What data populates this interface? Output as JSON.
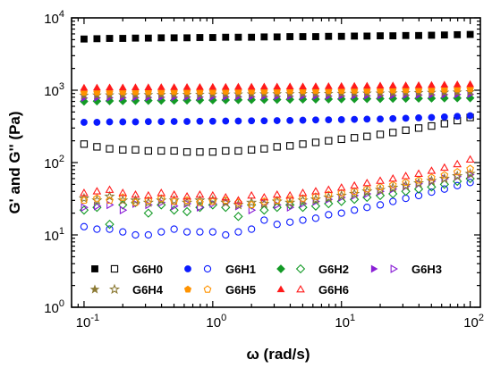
{
  "chart_data": {
    "type": "scatter",
    "title": "",
    "xlabel": "ω (rad/s)",
    "ylabel": "G' and G'' (Pa)",
    "xscale": "log",
    "yscale": "log",
    "xlim": [
      0.08,
      120
    ],
    "ylim": [
      1,
      10000
    ],
    "x_ticks": [
      {
        "value": 0.1,
        "base": "10",
        "exp": "-1"
      },
      {
        "value": 1,
        "base": "10",
        "exp": "0"
      },
      {
        "value": 10,
        "base": "10",
        "exp": "1"
      },
      {
        "value": 100,
        "base": "10",
        "exp": "2"
      }
    ],
    "y_ticks": [
      {
        "value": 1,
        "base": "10",
        "exp": "0"
      },
      {
        "value": 10,
        "base": "10",
        "exp": "1"
      },
      {
        "value": 100,
        "base": "10",
        "exp": "2"
      },
      {
        "value": 1000,
        "base": "10",
        "exp": "3"
      },
      {
        "value": 10000,
        "base": "10",
        "exp": "4"
      }
    ],
    "grid": false,
    "legend_position": "bottom-inside",
    "x": [
      0.1,
      0.126,
      0.158,
      0.2,
      0.251,
      0.316,
      0.398,
      0.501,
      0.631,
      0.794,
      1.0,
      1.26,
      1.58,
      2.0,
      2.51,
      3.16,
      3.98,
      5.01,
      6.31,
      7.94,
      10.0,
      12.6,
      15.8,
      20.0,
      25.1,
      31.6,
      39.8,
      50.1,
      63.1,
      79.4,
      100.0
    ],
    "series": [
      {
        "name": "G6H0",
        "marker": "square",
        "filled": true,
        "color": "#000000",
        "values": [
          5100,
          5150,
          5200,
          5200,
          5250,
          5250,
          5300,
          5300,
          5300,
          5350,
          5350,
          5400,
          5400,
          5400,
          5450,
          5450,
          5500,
          5500,
          5500,
          5550,
          5550,
          5600,
          5600,
          5650,
          5650,
          5700,
          5700,
          5750,
          5800,
          5850,
          5900
        ]
      },
      {
        "name": "G6H0",
        "marker": "square",
        "filled": false,
        "color": "#000000",
        "values": [
          180,
          165,
          155,
          150,
          150,
          145,
          145,
          145,
          140,
          140,
          140,
          145,
          145,
          150,
          155,
          165,
          170,
          180,
          190,
          200,
          210,
          220,
          230,
          245,
          260,
          280,
          300,
          320,
          345,
          380,
          420
        ]
      },
      {
        "name": "G6H1",
        "marker": "circle",
        "filled": true,
        "color": "#0a1aff",
        "values": [
          360,
          360,
          365,
          365,
          365,
          368,
          368,
          370,
          370,
          372,
          372,
          375,
          375,
          378,
          378,
          380,
          382,
          385,
          388,
          390,
          392,
          395,
          398,
          400,
          405,
          410,
          415,
          420,
          428,
          435,
          445
        ]
      },
      {
        "name": "G6H1",
        "marker": "circle",
        "filled": false,
        "color": "#0a1aff",
        "values": [
          13,
          12,
          12,
          11,
          10,
          10,
          11,
          12,
          11,
          11,
          11,
          10,
          11,
          12,
          16,
          14,
          15,
          16,
          17,
          19,
          20,
          22,
          24,
          26,
          29,
          32,
          35,
          39,
          43,
          48,
          53
        ]
      },
      {
        "name": "G6H2",
        "marker": "diamond",
        "filled": true,
        "color": "#139a26",
        "values": [
          700,
          705,
          710,
          712,
          715,
          718,
          720,
          722,
          725,
          728,
          730,
          732,
          735,
          738,
          740,
          742,
          745,
          748,
          750,
          752,
          755,
          758,
          760,
          762,
          765,
          768,
          770,
          772,
          775,
          778,
          780
        ]
      },
      {
        "name": "G6H2",
        "marker": "diamond",
        "filled": false,
        "color": "#139a26",
        "values": [
          22,
          24,
          14,
          26,
          28,
          20,
          26,
          22,
          21,
          24,
          26,
          24,
          18,
          26,
          22,
          24,
          26,
          24,
          25,
          27,
          29,
          31,
          33,
          35,
          37,
          40,
          43,
          46,
          50,
          55,
          60
        ]
      },
      {
        "name": "G6H3",
        "marker": "triangle-right",
        "filled": true,
        "color": "#8a1fd6",
        "values": [
          780,
          785,
          790,
          790,
          795,
          795,
          800,
          800,
          805,
          805,
          810,
          810,
          815,
          815,
          820,
          820,
          825,
          825,
          830,
          830,
          835,
          840,
          840,
          845,
          850,
          855,
          860,
          865,
          870,
          875,
          880
        ]
      },
      {
        "name": "G6H3",
        "marker": "triangle-right",
        "filled": false,
        "color": "#8a1fd6",
        "values": [
          24,
          25,
          26,
          22,
          27,
          26,
          28,
          25,
          27,
          24,
          27,
          28,
          25,
          22,
          27,
          26,
          24,
          27,
          29,
          31,
          33,
          35,
          37,
          40,
          43,
          47,
          51,
          55,
          60,
          64,
          68
        ]
      },
      {
        "name": "G6H4",
        "marker": "star",
        "filled": true,
        "color": "#8c7a34",
        "values": [
          850,
          855,
          858,
          860,
          862,
          865,
          868,
          870,
          872,
          875,
          878,
          880,
          882,
          885,
          888,
          890,
          892,
          895,
          898,
          900,
          902,
          905,
          908,
          910,
          915,
          920,
          925,
          930,
          935,
          940,
          950
        ]
      },
      {
        "name": "G6H4",
        "marker": "star",
        "filled": false,
        "color": "#8c7a34",
        "values": [
          32,
          30,
          34,
          30,
          30,
          28,
          30,
          30,
          28,
          30,
          30,
          28,
          26,
          28,
          27,
          29,
          28,
          30,
          31,
          33,
          35,
          37,
          40,
          42,
          45,
          48,
          52,
          56,
          60,
          65,
          70
        ]
      },
      {
        "name": "G6H5",
        "marker": "pentagon",
        "filled": true,
        "color": "#ff9300",
        "values": [
          930,
          935,
          940,
          942,
          945,
          948,
          950,
          952,
          955,
          958,
          960,
          962,
          965,
          968,
          970,
          972,
          975,
          978,
          980,
          982,
          985,
          988,
          990,
          995,
          1000,
          1005,
          1010,
          1015,
          1020,
          1030,
          1040
        ]
      },
      {
        "name": "G6H5",
        "marker": "pentagon",
        "filled": false,
        "color": "#ff9300",
        "values": [
          30,
          32,
          30,
          33,
          28,
          30,
          32,
          29,
          30,
          28,
          29,
          30,
          28,
          26,
          29,
          30,
          31,
          32,
          34,
          36,
          38,
          40,
          43,
          46,
          49,
          53,
          57,
          62,
          67,
          74,
          82
        ]
      },
      {
        "name": "G6H6",
        "marker": "triangle-up",
        "filled": true,
        "color": "#ff1a1a",
        "values": [
          1080,
          1085,
          1090,
          1090,
          1095,
          1095,
          1100,
          1100,
          1105,
          1105,
          1110,
          1110,
          1115,
          1115,
          1120,
          1120,
          1125,
          1125,
          1130,
          1135,
          1140,
          1145,
          1150,
          1155,
          1160,
          1165,
          1170,
          1180,
          1190,
          1200,
          1210
        ]
      },
      {
        "name": "G6H6",
        "marker": "triangle-up",
        "filled": false,
        "color": "#ff1a1a",
        "values": [
          38,
          40,
          42,
          38,
          36,
          35,
          38,
          36,
          34,
          36,
          35,
          33,
          30,
          35,
          33,
          36,
          35,
          38,
          40,
          42,
          45,
          48,
          52,
          56,
          60,
          65,
          70,
          77,
          85,
          95,
          110
        ]
      }
    ],
    "legend": [
      {
        "name": "G6H0",
        "marker": "square",
        "color": "#000000"
      },
      {
        "name": "G6H1",
        "marker": "circle",
        "color": "#0a1aff"
      },
      {
        "name": "G6H2",
        "marker": "diamond",
        "color": "#139a26"
      },
      {
        "name": "G6H3",
        "marker": "triangle-right",
        "color": "#8a1fd6"
      },
      {
        "name": "G6H4",
        "marker": "star",
        "color": "#8c7a34"
      },
      {
        "name": "G6H5",
        "marker": "pentagon",
        "color": "#ff9300"
      },
      {
        "name": "G6H6",
        "marker": "triangle-up",
        "color": "#ff1a1a"
      }
    ]
  }
}
